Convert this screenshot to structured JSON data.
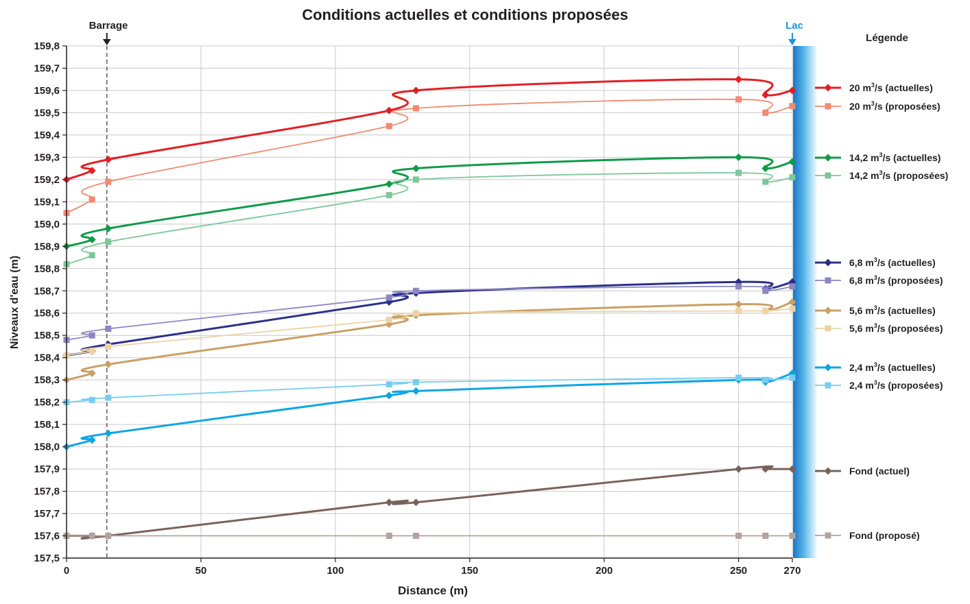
{
  "chart_data": {
    "type": "line",
    "title": "Conditions actuelles et conditions proposées",
    "xlabel": "Distance (m)",
    "ylabel": "Niveaux d'eau (m)",
    "xlim": [
      0,
      270
    ],
    "ylim": [
      157.5,
      159.8
    ],
    "x_ticks": [
      "0",
      "50",
      "100",
      "150",
      "200",
      "250",
      "270"
    ],
    "x_tick_values": [
      0,
      50,
      100,
      150,
      200,
      250,
      270
    ],
    "y_ticks": [
      "157,5",
      "157,6",
      "157,7",
      "157,8",
      "157,9",
      "158,0",
      "158,1",
      "158,2",
      "158,3",
      "158,4",
      "158,5",
      "158,6",
      "158,7",
      "158,8",
      "158,9",
      "159,0",
      "159,1",
      "159,2",
      "159,3",
      "159,4",
      "159,5",
      "159,6",
      "159,7",
      "159,8"
    ],
    "grid": true,
    "legend_title": "Légende",
    "legend_position": "right",
    "annotations": {
      "barrage": {
        "label": "Barrage",
        "x": 15
      },
      "lac": {
        "label": "Lac",
        "x": 270,
        "color": "#1b95d8"
      }
    },
    "x": [
      0,
      9.5,
      15.5,
      120,
      130,
      250,
      260,
      270
    ],
    "series": [
      {
        "name": "20 m³/s (actuelles)",
        "legend_main": "20 m",
        "legend_unit": "3",
        "legend_tail": "/s (actuelles)",
        "marker": "diamond",
        "color": "#e31e25",
        "width": 3,
        "values": [
          159.2,
          159.24,
          159.29,
          159.51,
          159.6,
          159.65,
          159.58,
          159.6
        ]
      },
      {
        "name": "20 m³/s (proposées)",
        "legend_main": "20 m",
        "legend_unit": "3",
        "legend_tail": "/s (proposées)",
        "marker": "square",
        "color": "#f08a70",
        "width": 1.8,
        "values": [
          159.05,
          159.11,
          159.19,
          159.44,
          159.52,
          159.56,
          159.5,
          159.53
        ]
      },
      {
        "name": "14,2 m³/s (actuelles)",
        "legend_main": "14,2 m",
        "legend_unit": "3",
        "legend_tail": "/s (actuelles)",
        "marker": "diamond",
        "color": "#0f9a48",
        "width": 3,
        "values": [
          158.9,
          158.93,
          158.98,
          159.18,
          159.25,
          159.3,
          159.25,
          159.28
        ]
      },
      {
        "name": "14,2 m³/s (proposées)",
        "legend_main": "14,2 m",
        "legend_unit": "3",
        "legend_tail": "/s (proposées)",
        "marker": "square",
        "color": "#7cc79a",
        "width": 1.8,
        "values": [
          158.82,
          158.86,
          158.92,
          159.13,
          159.2,
          159.23,
          159.19,
          159.21
        ]
      },
      {
        "name": "6,8 m³/s (actuelles)",
        "legend_main": "6,8 m",
        "legend_unit": "3",
        "legend_tail": "/s (actuelles)",
        "marker": "diamond",
        "color": "#2b3088",
        "width": 3,
        "values": [
          158.41,
          158.43,
          158.46,
          158.65,
          158.69,
          158.74,
          158.71,
          158.74
        ]
      },
      {
        "name": "6,8 m³/s (proposées)",
        "legend_main": "6,8 m",
        "legend_unit": "3",
        "legend_tail": "/s (proposées)",
        "marker": "square",
        "color": "#8c86c2",
        "width": 1.8,
        "values": [
          158.48,
          158.5,
          158.53,
          158.67,
          158.7,
          158.72,
          158.7,
          158.72
        ]
      },
      {
        "name": "5,6 m³/s (actuelles)",
        "legend_main": "5,6 m",
        "legend_unit": "3",
        "legend_tail": "/s (actuelles)",
        "marker": "diamond",
        "color": "#c8a064",
        "width": 3,
        "values": [
          158.3,
          158.33,
          158.37,
          158.55,
          158.59,
          158.64,
          158.61,
          158.65
        ]
      },
      {
        "name": "5,6 m³/s (proposées)",
        "legend_main": "5,6 m",
        "legend_unit": "3",
        "legend_tail": "/s (proposées)",
        "marker": "square",
        "color": "#ecd3a6",
        "width": 1.8,
        "values": [
          158.41,
          158.43,
          158.45,
          158.57,
          158.6,
          158.61,
          158.61,
          158.62
        ]
      },
      {
        "name": "2,4 m³/s (actuelles)",
        "legend_main": "2,4 m",
        "legend_unit": "3",
        "legend_tail": "/s (actuelles)",
        "marker": "diamond",
        "color": "#0ea5e4",
        "width": 3,
        "values": [
          158.0,
          158.03,
          158.06,
          158.23,
          158.25,
          158.3,
          158.29,
          158.33
        ]
      },
      {
        "name": "2,4 m³/s (proposées)",
        "legend_main": "2,4 m",
        "legend_unit": "3",
        "legend_tail": "/s (proposées)",
        "marker": "square",
        "color": "#76cdf2",
        "width": 1.8,
        "values": [
          158.2,
          158.21,
          158.22,
          158.28,
          158.29,
          158.31,
          158.3,
          158.31
        ]
      },
      {
        "name": "Fond (actuel)",
        "legend_main": "Fond (actuel)",
        "legend_unit": "",
        "legend_tail": "",
        "marker": "diamond",
        "color": "#7a625b",
        "width": 3,
        "values": [
          157.6,
          157.6,
          157.6,
          157.75,
          157.75,
          157.9,
          157.9,
          157.9
        ]
      },
      {
        "name": "Fond (proposé)",
        "legend_main": "Fond (proposé)",
        "legend_unit": "",
        "legend_tail": "",
        "marker": "square",
        "color": "#b3a39d",
        "width": 1.8,
        "values": [
          157.6,
          157.6,
          157.6,
          157.6,
          157.6,
          157.6,
          157.6,
          157.6
        ]
      }
    ]
  }
}
